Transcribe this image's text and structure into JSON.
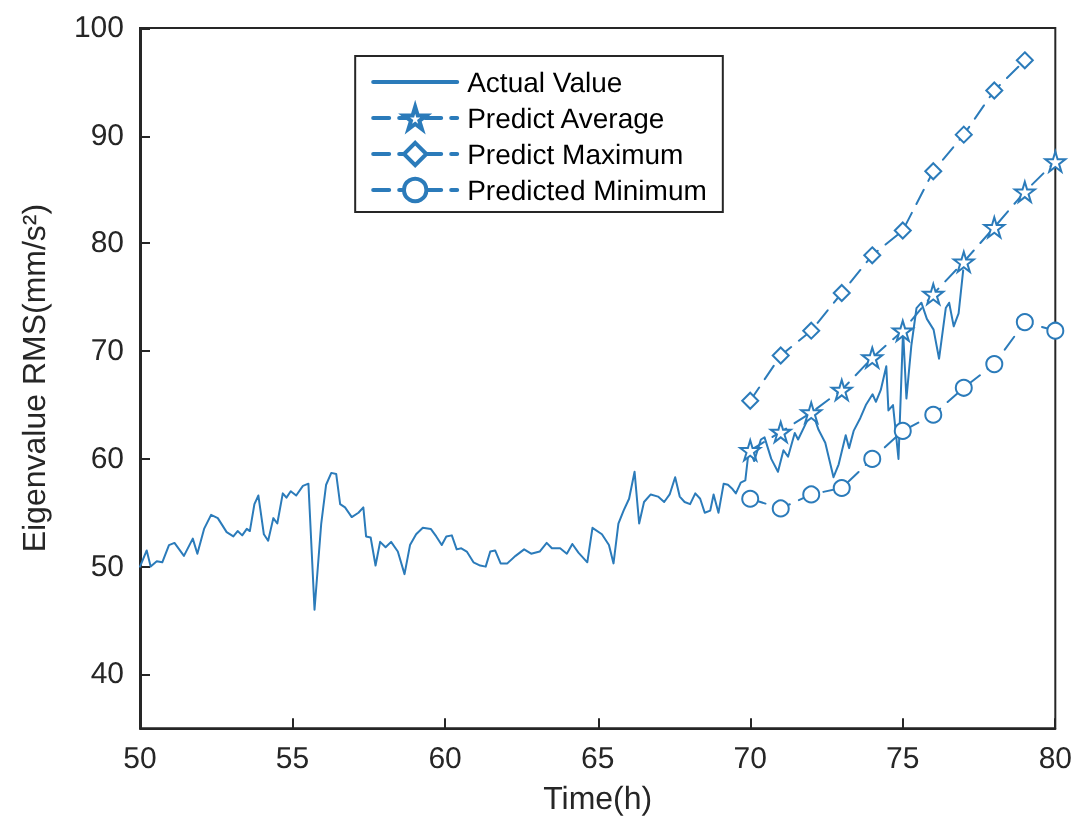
{
  "chart_data": {
    "type": "line",
    "xlabel": "Time(h)",
    "ylabel": "Eigenvalue RMS(mm/s²)",
    "xlim": [
      50,
      80
    ],
    "xticks": [
      50,
      55,
      60,
      65,
      70,
      75,
      80
    ],
    "ylim": [
      35,
      100
    ],
    "yticks": [
      40,
      50,
      60,
      70,
      80,
      90,
      100
    ],
    "grid": false,
    "legend": "top",
    "series": [
      {
        "name": "Actual Value",
        "color": "#2b7bba",
        "marker": "none",
        "line_style": "solid",
        "x": [
          50,
          50.22,
          50.35,
          50.55,
          50.73,
          50.95,
          51.13,
          51.44,
          51.73,
          51.88,
          52.1,
          52.33,
          52.55,
          52.84,
          53.06,
          53.2,
          53.35,
          53.5,
          53.6,
          53.75,
          53.88,
          54.06,
          54.2,
          54.37,
          54.5,
          54.68,
          54.8,
          54.94,
          55.12,
          55.34,
          55.52,
          55.72,
          55.94,
          56.1,
          56.27,
          56.43,
          56.56,
          56.72,
          56.94,
          57.16,
          57.32,
          57.41,
          57.56,
          57.72,
          57.87,
          58.05,
          58.23,
          58.45,
          58.67,
          58.85,
          59.05,
          59.27,
          59.53,
          59.71,
          59.89,
          60.04,
          60.22,
          60.38,
          60.53,
          60.71,
          60.93,
          61.15,
          61.33,
          61.48,
          61.64,
          61.82,
          62.04,
          62.31,
          62.59,
          62.82,
          63.1,
          63.33,
          63.5,
          63.77,
          63.99,
          64.17,
          64.37,
          64.66,
          64.83,
          65.14,
          65.37,
          65.52,
          65.68,
          65.85,
          66.03,
          66.21,
          66.36,
          66.52,
          66.74,
          66.98,
          67.18,
          67.36,
          67.54,
          67.69,
          67.85,
          68.03,
          68.2,
          68.36,
          68.51,
          68.69,
          68.8,
          68.96,
          69.13,
          69.27,
          69.42,
          69.53,
          69.69,
          69.84,
          69.96,
          70.13,
          70.35,
          70.47,
          70.69,
          70.91,
          71.09,
          71.24,
          71.46,
          71.57,
          71.86,
          72.02,
          72.24,
          72.46,
          72.73,
          72.9,
          73.13,
          73.24,
          73.39,
          73.61,
          73.79,
          74.01,
          74.12,
          74.28,
          74.46,
          74.53,
          74.68,
          74.86,
          75.01,
          75.12,
          75.28,
          75.45,
          75.61,
          75.79,
          76.01,
          76.19,
          76.41,
          76.52,
          76.67,
          76.83,
          76.98
        ],
        "values": [
          50,
          51.5,
          50,
          50.5,
          50.4,
          52,
          52.2,
          51,
          52.6,
          51.2,
          53.5,
          54.8,
          54.5,
          53.2,
          52.8,
          53.3,
          52.9,
          53.5,
          53.3,
          55.8,
          56.6,
          53,
          52.4,
          54.5,
          54,
          56.8,
          56.4,
          57,
          56.6,
          57.5,
          57.7,
          46,
          54,
          57.6,
          58.7,
          58.6,
          55.8,
          55.5,
          54.6,
          55,
          55.5,
          52.8,
          52.7,
          50.1,
          52.3,
          51.8,
          52.3,
          51.4,
          49.3,
          52,
          53,
          53.6,
          53.5,
          52.8,
          52,
          52.8,
          52.9,
          51.6,
          51.7,
          51.4,
          50.4,
          50.1,
          50,
          51.4,
          51.5,
          50.3,
          50.3,
          51,
          51.6,
          51.2,
          51.4,
          52.2,
          51.7,
          51.7,
          51.2,
          52.1,
          51.3,
          50.4,
          53.6,
          53,
          52,
          50.3,
          54,
          55.2,
          56.3,
          58.8,
          54,
          56,
          56.7,
          56.5,
          56,
          56.7,
          58.3,
          56.5,
          56,
          55.8,
          56.8,
          56.3,
          55,
          55.2,
          56.7,
          55,
          57.7,
          57.6,
          57.2,
          56.8,
          57.8,
          58,
          61,
          59.8,
          61.8,
          62,
          60,
          58.8,
          60.8,
          60.2,
          62.4,
          61.8,
          63.5,
          64.5,
          62.7,
          61.5,
          58.3,
          59.5,
          62.2,
          61,
          62.6,
          63.8,
          65,
          66,
          65.3,
          66.4,
          68.6,
          64.5,
          65,
          60,
          71.9,
          65.6,
          70.5,
          74,
          74.5,
          73,
          72,
          69.3,
          74,
          74.5,
          72.3,
          73.5,
          77.5
        ]
      },
      {
        "name": "Predict Average",
        "color": "#2b7bba",
        "marker": "star",
        "line_style": "dashed",
        "x": [
          70,
          71,
          72,
          73,
          74,
          75,
          76,
          77,
          78,
          79,
          80
        ],
        "values": [
          60.8,
          62.5,
          64.3,
          66.4,
          69.4,
          71.9,
          75.3,
          78.3,
          81.5,
          84.8,
          87.6
        ]
      },
      {
        "name": "Predict Maximum",
        "color": "#2b7bba",
        "marker": "diamond",
        "line_style": "dashed",
        "x": [
          70,
          71,
          72,
          73,
          74,
          75,
          76,
          77,
          78,
          79
        ],
        "values": [
          65.4,
          69.6,
          71.9,
          75.4,
          78.9,
          81.2,
          86.7,
          90.1,
          94.2,
          97
        ]
      },
      {
        "name": "Predicted Minimum",
        "color": "#2b7bba",
        "marker": "circle",
        "line_style": "dashed",
        "x": [
          70,
          71,
          72,
          73,
          74,
          75,
          76,
          77,
          78,
          79,
          80
        ],
        "values": [
          56.3,
          55.4,
          56.7,
          57.3,
          60,
          62.6,
          64.1,
          66.6,
          68.8,
          72.7,
          71.9
        ]
      }
    ]
  }
}
